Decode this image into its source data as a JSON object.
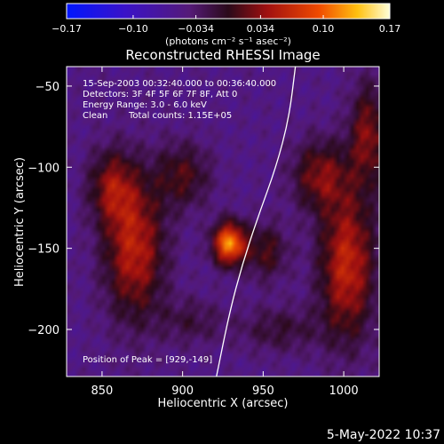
{
  "chart_data": {
    "type": "heatmap",
    "title": "Reconstructed RHESSI Image",
    "xlabel": "Heliocentric X (arcsec)",
    "ylabel": "Heliocentric Y (arcsec)",
    "xlim": [
      828,
      1022
    ],
    "ylim": [
      -229,
      -38
    ],
    "x_ticks": [
      850,
      900,
      950,
      1000
    ],
    "x_tick_labels": [
      "850",
      "900",
      "950",
      "1000"
    ],
    "y_ticks": [
      -50,
      -100,
      -150,
      -200
    ],
    "y_tick_labels": [
      "−50",
      "−100",
      "−150",
      "−200"
    ],
    "colorbar": {
      "range": [
        -0.17,
        0.17
      ],
      "ticks": [
        -0.17,
        -0.1,
        -0.034,
        0.034,
        0.1,
        0.17
      ],
      "tick_labels": [
        "−0.17",
        "−0.10",
        "−0.034",
        "0.034",
        "0.10",
        "0.17"
      ],
      "unit_label": "(photons cm⁻² s⁻¹ asec⁻²)",
      "colormap": "rhessi-blue-purple-red-yellow-white"
    },
    "annotations": [
      "15-Sep-2003 00:32:40.000 to 00:36:40.000",
      "Detectors: 3F 4F 5F 6F 7F 8F, Att 0",
      "Energy Range: 3.0 - 6.0 keV",
      "Clean",
      "Total counts: 1.15E+05"
    ],
    "peak_label": "Position of Peak = [929,-149]",
    "peak": [
      929,
      -149
    ],
    "sources": [
      {
        "x": 929,
        "y": -147,
        "sx": 7,
        "sy": 9,
        "amp": 0.17
      },
      {
        "x": 870,
        "y": -150,
        "sx": 13,
        "sy": 30,
        "amp": 0.105
      },
      {
        "x": 856,
        "y": -112,
        "sx": 10,
        "sy": 16,
        "amp": 0.075
      },
      {
        "x": 900,
        "y": -105,
        "sx": 12,
        "sy": 14,
        "amp": 0.06
      },
      {
        "x": 952,
        "y": -152,
        "sx": 9,
        "sy": 12,
        "amp": 0.06
      },
      {
        "x": 1002,
        "y": -160,
        "sx": 12,
        "sy": 32,
        "amp": 0.11
      },
      {
        "x": 985,
        "y": -105,
        "sx": 12,
        "sy": 15,
        "amp": 0.075
      },
      {
        "x": 1015,
        "y": -80,
        "sx": 8,
        "sy": 22,
        "amp": 0.08
      },
      {
        "x": 960,
        "y": -200,
        "sx": 18,
        "sy": 10,
        "amp": 0.04
      },
      {
        "x": 905,
        "y": -195,
        "sx": 14,
        "sy": 10,
        "amp": 0.035
      }
    ],
    "limb_curve": [
      [
        970,
        -38
      ],
      [
        966,
        -70
      ],
      [
        958,
        -100
      ],
      [
        947,
        -130
      ],
      [
        937,
        -160
      ],
      [
        929,
        -190
      ],
      [
        921,
        -229
      ]
    ]
  },
  "timestamp": "5-May-2022 10:37"
}
